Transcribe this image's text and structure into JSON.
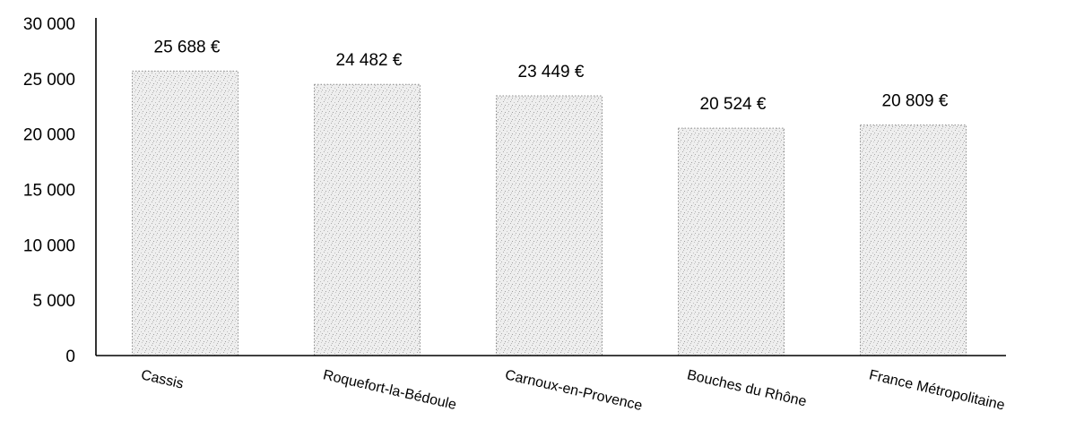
{
  "chart_data": {
    "type": "bar",
    "categories": [
      "Cassis",
      "Roquefort-la-Bédoule",
      "Carnoux-en-Provence",
      "Bouches du Rhône",
      "France Métropolitaine"
    ],
    "series": [
      {
        "values": [
          25688,
          24482,
          23449,
          20524,
          20809
        ],
        "data_labels": [
          "25 688 €",
          "24 482 €",
          "23 449 €",
          "20 524 €",
          "20 809 €"
        ]
      }
    ],
    "title": "",
    "xlabel": "",
    "ylabel": "",
    "ylim": [
      0,
      30000
    ],
    "yticks": [
      0,
      5000,
      10000,
      15000,
      20000,
      25000,
      30000
    ],
    "ytick_labels": [
      "0",
      "5 000",
      "10 000",
      "15 000",
      "20 000",
      "25 000",
      "30 000"
    ],
    "grid": false,
    "legend": "none",
    "bar_color": "#e4e4e4",
    "bar_texture": "speckled-gray"
  }
}
